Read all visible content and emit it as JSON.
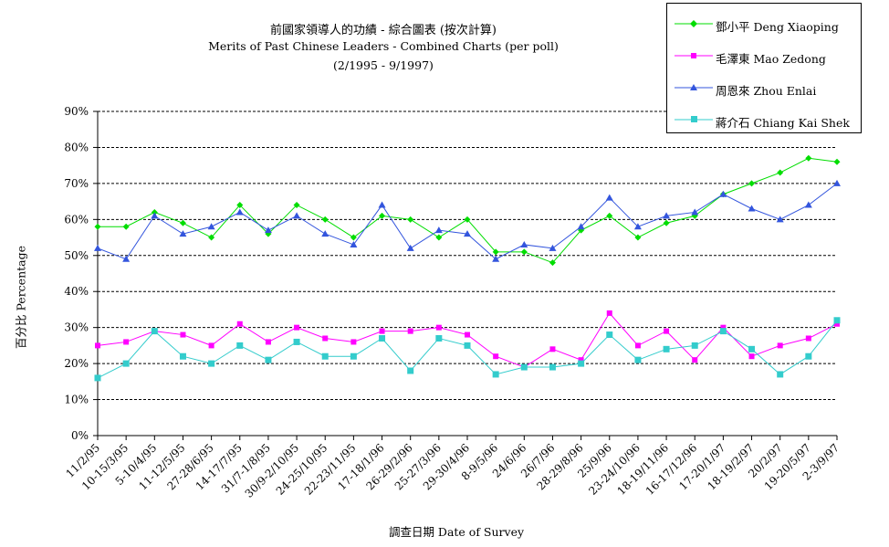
{
  "chart_data": {
    "type": "line",
    "title": "前國家領導人的功績 - 綜合圖表 (按次計算)",
    "subtitle": "Merits of Past Chinese Leaders - Combined Charts (per poll)",
    "period": "(2/1995 - 9/1997)",
    "xlabel": "調查日期 Date of Survey",
    "ylabel": "百分比 Percentage",
    "ylim": [
      0,
      90
    ],
    "yticks": [
      "0%",
      "10%",
      "20%",
      "30%",
      "40%",
      "50%",
      "60%",
      "70%",
      "80%",
      "90%"
    ],
    "grid": "horizontal dashed",
    "legend_position": "top-right",
    "categories": [
      "11/2/95",
      "10-15/3/95",
      "5-10/4/95",
      "11-12/5/95",
      "27-28/6/95",
      "14-17/7/95",
      "31/7-1/8/95",
      "30/9-2/10/95",
      "24-25/10/95",
      "22-23/11/95",
      "17-18/1/96",
      "26-29/2/96",
      "25-27/3/96",
      "29-30/4/96",
      "8-9/5/96",
      "24/6/96",
      "26/7/96",
      "28-29/8/96",
      "25/9/96",
      "23-24/10/96",
      "18-19/11/96",
      "16-17/12/96",
      "17-20/1/97",
      "18-19/2/97",
      "20/2/97",
      "19-20/5/97",
      "2-3/9/97"
    ],
    "x_tick_labels": [
      "11/2/95",
      "10-15/3/95",
      "5-10/4/95",
      "11-12/5/95",
      "27-28/6/95",
      "14-17/7/95",
      "31/7-1/8/95",
      "30/9-2/10/95",
      "24-25/10/95",
      "22-23/11/95",
      "17-18/1/96",
      "26-29/2/96",
      "25-27/3/96",
      "29-30/4/96",
      "8-9/5/96",
      "24/6/96",
      "26/7/96",
      "28-29/8/96",
      "25/9/96",
      "23-24/10/96",
      "18-19/11/96",
      "16-17/12/96",
      "17-20/1/97",
      "18-19/2/97",
      "20/2/97",
      "19-20/5/97",
      "2-3/9/97"
    ],
    "series": [
      {
        "name": "鄧小平 Deng Xiaoping",
        "color": "#00dd00",
        "marker": "diamond",
        "values": [
          58,
          58,
          62,
          59,
          55,
          64,
          56,
          64,
          60,
          55,
          61,
          60,
          55,
          60,
          51,
          51,
          48,
          57,
          61,
          55,
          59,
          61,
          67,
          70,
          73,
          77,
          76
        ]
      },
      {
        "name": "毛澤東 Mao Zedong",
        "color": "#ff00ff",
        "marker": "square",
        "values": [
          25,
          26,
          29,
          28,
          25,
          31,
          26,
          30,
          27,
          26,
          29,
          29,
          30,
          28,
          22,
          19,
          24,
          21,
          34,
          25,
          29,
          21,
          30,
          22,
          25,
          27,
          31
        ]
      },
      {
        "name": "周恩來 Zhou Enlai",
        "color": "#3355dd",
        "marker": "triangle",
        "values": [
          52,
          49,
          61,
          56,
          58,
          62,
          57,
          61,
          56,
          53,
          64,
          52,
          57,
          56,
          49,
          53,
          52,
          58,
          66,
          58,
          61,
          62,
          67,
          63,
          60,
          64,
          70
        ]
      },
      {
        "name": "蔣介石 Chiang Kai Shek",
        "color": "#33cccc",
        "marker": "square",
        "values": [
          16,
          20,
          29,
          22,
          20,
          25,
          21,
          26,
          22,
          22,
          27,
          18,
          27,
          25,
          17,
          19,
          19,
          20,
          28,
          21,
          24,
          25,
          29,
          24,
          17,
          22,
          32
        ]
      }
    ]
  }
}
